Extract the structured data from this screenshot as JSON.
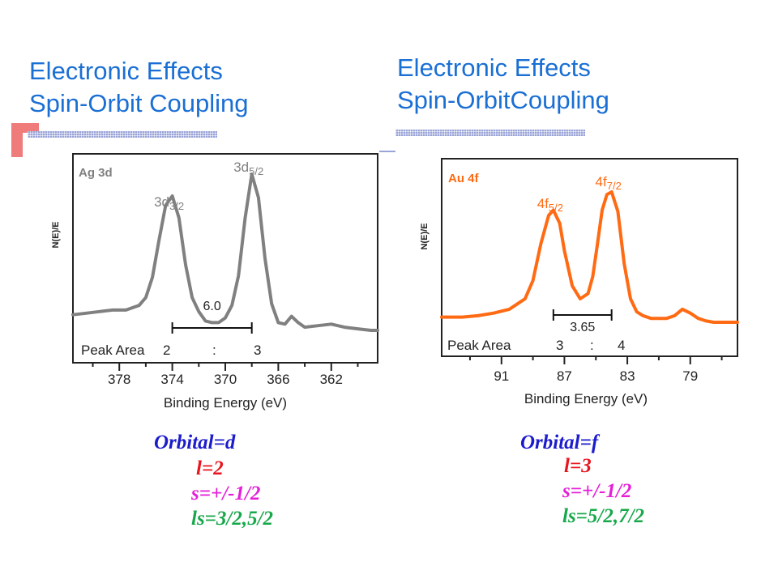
{
  "slides": [
    {
      "title_line1": "Electronic Effects",
      "title_line2": "Spin-Orbit Coupling"
    },
    {
      "title_line1": "Electronic Effects",
      "title_line2": "Spin-OrbitCoupling"
    }
  ],
  "colors": {
    "title": "#1a6fd4",
    "rule": "#9aa4d8",
    "accent_red": "#ef7b7b",
    "ag_curve": "#808080",
    "au_curve": "#ff6a13",
    "orbital": "#1c1ccc",
    "l": "#e8141e",
    "s": "#e51ed8",
    "ls": "#16a84a"
  },
  "chart_data": [
    {
      "type": "line",
      "sample": "Ag 3d",
      "ylabel": "N(E)/E",
      "xlabel": "Binding Energy (eV)",
      "x_ticks": [
        "378",
        "374",
        "370",
        "366",
        "362"
      ],
      "xlim": [
        381.5,
        358.5
      ],
      "x_reversed": true,
      "peaks": [
        {
          "label": "3d",
          "sub": "3/2",
          "x": 374.0
        },
        {
          "label": "3d",
          "sub": "5/2",
          "x": 368.0
        }
      ],
      "splitting": "6.0",
      "peak_area": {
        "label": "Peak Area",
        "left": "2",
        "sep": ":",
        "right": "3"
      },
      "series": [
        {
          "x": [
            381.5,
            380.5,
            379.5,
            378.5,
            377.5,
            376.5,
            376.0,
            375.5,
            375.0,
            374.5,
            374.0,
            373.5,
            373.0,
            372.5,
            372.0,
            371.5,
            371.0,
            370.5,
            370.0,
            369.5,
            369.0,
            368.5,
            368.0,
            367.5,
            367.0,
            366.5,
            366.0,
            365.5,
            365.0,
            364.5,
            364.0,
            363.0,
            362.0,
            361.0,
            360.0,
            359.0,
            358.5
          ],
          "y": [
            0.1,
            0.11,
            0.12,
            0.13,
            0.13,
            0.16,
            0.21,
            0.34,
            0.58,
            0.8,
            0.86,
            0.72,
            0.42,
            0.21,
            0.12,
            0.06,
            0.05,
            0.05,
            0.08,
            0.16,
            0.35,
            0.72,
            1.0,
            0.85,
            0.46,
            0.17,
            0.05,
            0.04,
            0.09,
            0.05,
            0.02,
            0.03,
            0.04,
            0.02,
            0.01,
            0.0,
            0.0
          ]
        }
      ],
      "curve_color": "#808080"
    },
    {
      "type": "line",
      "sample": "Au 4f",
      "ylabel": "N(E)/E",
      "xlabel": "Binding Energy (eV)",
      "x_ticks": [
        "91",
        "87",
        "83",
        "79"
      ],
      "xlim": [
        94.8,
        76.0
      ],
      "x_reversed": true,
      "peaks": [
        {
          "label": "4f",
          "sub": "5/2",
          "x": 87.7
        },
        {
          "label": "4f",
          "sub": "7/2",
          "x": 84.0
        }
      ],
      "splitting": "3.65",
      "peak_area": {
        "label": "Peak Area",
        "left": "3",
        "sep": ":",
        "right": "4"
      },
      "series": [
        {
          "x": [
            94.8,
            93.5,
            92.5,
            91.5,
            90.5,
            89.5,
            89.0,
            88.5,
            88.0,
            87.7,
            87.3,
            87.0,
            86.5,
            86.0,
            85.5,
            85.2,
            84.9,
            84.6,
            84.3,
            84.0,
            83.6,
            83.2,
            82.8,
            82.4,
            82.0,
            81.5,
            81.0,
            80.5,
            80.0,
            79.5,
            79.0,
            78.5,
            78.0,
            77.5,
            77.0,
            76.5,
            76.0
          ],
          "y": [
            0.04,
            0.04,
            0.05,
            0.07,
            0.1,
            0.18,
            0.32,
            0.6,
            0.82,
            0.86,
            0.76,
            0.55,
            0.28,
            0.18,
            0.22,
            0.35,
            0.6,
            0.86,
            0.98,
            1.0,
            0.85,
            0.45,
            0.18,
            0.08,
            0.05,
            0.03,
            0.03,
            0.03,
            0.05,
            0.1,
            0.07,
            0.03,
            0.01,
            0.0,
            0.0,
            0.0,
            0.0
          ]
        }
      ],
      "curve_color": "#ff6a13"
    }
  ],
  "left_info": {
    "orbital": "Orbital=d",
    "l": "l=2",
    "s": "s=+/-1/2",
    "ls": "ls=3/2,5/2"
  },
  "right_info": {
    "orbital": "Orbital=f",
    "l": "l=3",
    "s": "s=+/-1/2",
    "ls": "ls=5/2,7/2"
  }
}
